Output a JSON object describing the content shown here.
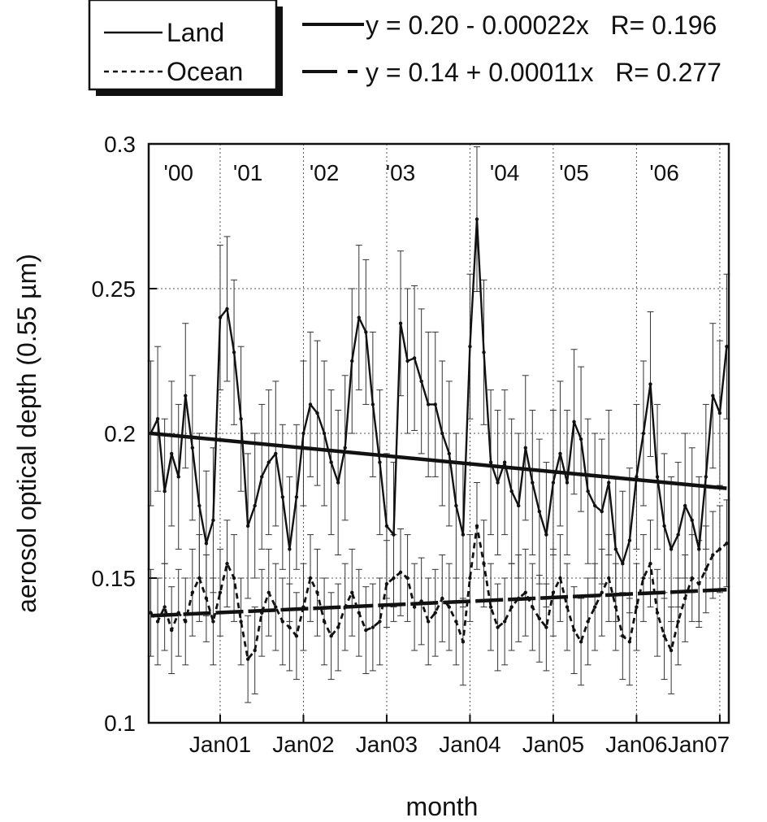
{
  "chart_data": {
    "type": "line",
    "xlabel": "month",
    "ylabel": "aerosol optical depth (0.55 µm)",
    "ylim": [
      0.1,
      0.3
    ],
    "xlim": [
      "2000-03",
      "2007-02"
    ],
    "yticks": [
      0.1,
      0.15,
      0.2,
      0.25,
      0.3
    ],
    "xticks": [
      {
        "label": "Jan01",
        "date": "2001-01"
      },
      {
        "label": "Jan02",
        "date": "2002-01"
      },
      {
        "label": "Jan03",
        "date": "2003-01"
      },
      {
        "label": "Jan04",
        "date": "2004-01"
      },
      {
        "label": "Jan05",
        "date": "2005-01"
      },
      {
        "label": "Jan06",
        "date": "2006-01"
      },
      {
        "label": "Jan07",
        "date": "2007-01"
      }
    ],
    "year_labels": [
      {
        "label": "'00",
        "date": "2000-07"
      },
      {
        "label": "'01",
        "date": "2001-05"
      },
      {
        "label": "'02",
        "date": "2002-04"
      },
      {
        "label": "'03",
        "date": "2003-03"
      },
      {
        "label": "'04",
        "date": "2004-06"
      },
      {
        "label": "'05",
        "date": "2005-04"
      },
      {
        "label": "'06",
        "date": "2006-05"
      }
    ],
    "grid": true,
    "legend": {
      "position": "top-left",
      "entries": [
        "Land",
        "Ocean"
      ]
    },
    "fit_labels": [
      "y = 0.20 - 0.00022x   R= 0.196",
      "y = 0.14 + 0.00011x   R= 0.277"
    ],
    "series": [
      {
        "name": "Land",
        "style": "solid",
        "x": [
          "2000-03",
          "2000-04",
          "2000-05",
          "2000-06",
          "2000-07",
          "2000-08",
          "2000-09",
          "2000-10",
          "2000-11",
          "2000-12",
          "2001-01",
          "2001-02",
          "2001-03",
          "2001-04",
          "2001-05",
          "2001-06",
          "2001-07",
          "2001-08",
          "2001-09",
          "2001-10",
          "2001-11",
          "2001-12",
          "2002-01",
          "2002-02",
          "2002-03",
          "2002-04",
          "2002-05",
          "2002-06",
          "2002-07",
          "2002-08",
          "2002-09",
          "2002-10",
          "2002-11",
          "2002-12",
          "2003-01",
          "2003-02",
          "2003-03",
          "2003-04",
          "2003-05",
          "2003-06",
          "2003-07",
          "2003-08",
          "2003-09",
          "2003-10",
          "2003-11",
          "2003-12",
          "2004-01",
          "2004-02",
          "2004-03",
          "2004-04",
          "2004-05",
          "2004-06",
          "2004-07",
          "2004-08",
          "2004-09",
          "2004-10",
          "2004-11",
          "2004-12",
          "2005-01",
          "2005-02",
          "2005-03",
          "2005-04",
          "2005-05",
          "2005-06",
          "2005-07",
          "2005-08",
          "2005-09",
          "2005-10",
          "2005-11",
          "2005-12",
          "2006-01",
          "2006-02",
          "2006-03",
          "2006-04",
          "2006-05",
          "2006-06",
          "2006-07",
          "2006-08",
          "2006-09",
          "2006-10",
          "2006-11",
          "2006-12",
          "2007-01",
          "2007-02"
        ],
        "y": [
          0.2,
          0.205,
          0.18,
          0.193,
          0.185,
          0.213,
          0.195,
          0.175,
          0.162,
          0.17,
          0.24,
          0.243,
          0.228,
          0.205,
          0.168,
          0.175,
          0.185,
          0.19,
          0.193,
          0.178,
          0.16,
          0.178,
          0.2,
          0.21,
          0.207,
          0.2,
          0.19,
          0.183,
          0.195,
          0.225,
          0.24,
          0.235,
          0.21,
          0.19,
          0.168,
          0.165,
          0.238,
          0.225,
          0.226,
          0.218,
          0.21,
          0.21,
          0.2,
          0.193,
          0.175,
          0.165,
          0.23,
          0.274,
          0.228,
          0.19,
          0.183,
          0.19,
          0.18,
          0.175,
          0.195,
          0.183,
          0.173,
          0.165,
          0.183,
          0.193,
          0.183,
          0.204,
          0.198,
          0.18,
          0.175,
          0.173,
          0.183,
          0.16,
          0.155,
          0.163,
          0.185,
          0.2,
          0.217,
          0.185,
          0.168,
          0.16,
          0.165,
          0.175,
          0.17,
          0.16,
          0.185,
          0.213,
          0.207,
          0.23
        ],
        "err": 0.025
      },
      {
        "name": "Ocean",
        "style": "dashed",
        "x": [
          "2000-03",
          "2000-04",
          "2000-05",
          "2000-06",
          "2000-07",
          "2000-08",
          "2000-09",
          "2000-10",
          "2000-11",
          "2000-12",
          "2001-01",
          "2001-02",
          "2001-03",
          "2001-04",
          "2001-05",
          "2001-06",
          "2001-07",
          "2001-08",
          "2001-09",
          "2001-10",
          "2001-11",
          "2001-12",
          "2002-01",
          "2002-02",
          "2002-03",
          "2002-04",
          "2002-05",
          "2002-06",
          "2002-07",
          "2002-08",
          "2002-09",
          "2002-10",
          "2002-11",
          "2002-12",
          "2003-01",
          "2003-02",
          "2003-03",
          "2003-04",
          "2003-05",
          "2003-06",
          "2003-07",
          "2003-08",
          "2003-09",
          "2003-10",
          "2003-11",
          "2003-12",
          "2004-01",
          "2004-02",
          "2004-03",
          "2004-04",
          "2004-05",
          "2004-06",
          "2004-07",
          "2004-08",
          "2004-09",
          "2004-10",
          "2004-11",
          "2004-12",
          "2005-01",
          "2005-02",
          "2005-03",
          "2005-04",
          "2005-05",
          "2005-06",
          "2005-07",
          "2005-08",
          "2005-09",
          "2005-10",
          "2005-11",
          "2005-12",
          "2006-01",
          "2006-02",
          "2006-03",
          "2006-04",
          "2006-05",
          "2006-06",
          "2006-07",
          "2006-08",
          "2006-09",
          "2006-10",
          "2006-11",
          "2006-12",
          "2007-01",
          "2007-02"
        ],
        "y": [
          0.138,
          0.135,
          0.14,
          0.132,
          0.138,
          0.135,
          0.145,
          0.15,
          0.143,
          0.135,
          0.145,
          0.155,
          0.15,
          0.135,
          0.122,
          0.125,
          0.138,
          0.145,
          0.14,
          0.135,
          0.133,
          0.13,
          0.14,
          0.15,
          0.145,
          0.135,
          0.13,
          0.133,
          0.14,
          0.145,
          0.138,
          0.132,
          0.133,
          0.135,
          0.148,
          0.15,
          0.152,
          0.15,
          0.14,
          0.142,
          0.135,
          0.138,
          0.143,
          0.14,
          0.135,
          0.128,
          0.15,
          0.168,
          0.155,
          0.14,
          0.133,
          0.135,
          0.14,
          0.143,
          0.145,
          0.14,
          0.136,
          0.133,
          0.145,
          0.15,
          0.14,
          0.132,
          0.128,
          0.135,
          0.14,
          0.145,
          0.15,
          0.14,
          0.13,
          0.128,
          0.14,
          0.15,
          0.155,
          0.138,
          0.13,
          0.125,
          0.135,
          0.143,
          0.15,
          0.148,
          0.153,
          0.158,
          0.16,
          0.162
        ],
        "err": 0.015
      },
      {
        "name": "Land fit",
        "style": "thick-solid",
        "x": [
          "2000-03",
          "2007-02"
        ],
        "y": [
          0.2,
          0.181
        ]
      },
      {
        "name": "Ocean fit",
        "style": "thick-dashed",
        "x": [
          "2000-03",
          "2007-02"
        ],
        "y": [
          0.137,
          0.146
        ]
      }
    ]
  }
}
